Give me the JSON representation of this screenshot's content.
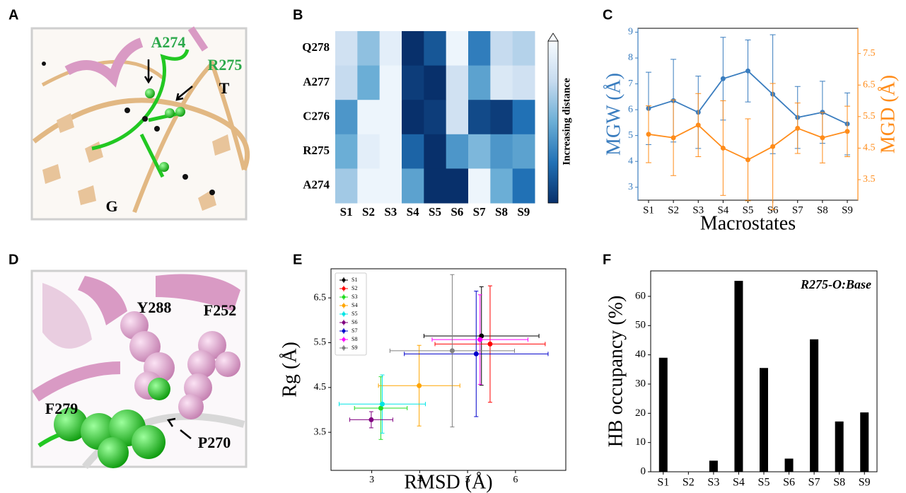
{
  "panel_labels": [
    "A",
    "B",
    "C",
    "D",
    "E",
    "F"
  ],
  "images": [
    {
      "labels": [
        "A274",
        "R275",
        "T",
        "G"
      ]
    },
    {
      "labels": [
        "Y288",
        "F252",
        "F279",
        "P270"
      ]
    }
  ],
  "chart_data": [
    {
      "type": "heatmap",
      "categories": [
        "S1",
        "S2",
        "S3",
        "S4",
        "S5",
        "S6",
        "S7",
        "S8",
        "S9"
      ],
      "rows": [
        "Q278",
        "A277",
        "C276",
        "R275",
        "A274"
      ],
      "values": [
        [
          0.8,
          0.6,
          0.9,
          0.0,
          0.15,
          0.95,
          0.3,
          0.75,
          0.7
        ],
        [
          0.75,
          0.5,
          0.95,
          0.05,
          0.0,
          0.8,
          0.45,
          0.85,
          0.8
        ],
        [
          0.4,
          0.95,
          0.95,
          0.0,
          0.05,
          0.8,
          0.1,
          0.05,
          0.25
        ],
        [
          0.5,
          0.9,
          0.95,
          0.2,
          0.0,
          0.4,
          0.55,
          0.4,
          0.45
        ],
        [
          0.65,
          0.95,
          0.95,
          0.45,
          0.0,
          0.0,
          0.95,
          0.5,
          0.25
        ]
      ],
      "zlim": [
        0,
        1
      ],
      "colormap": [
        "#08306b",
        "#2171b5",
        "#6baed6",
        "#c6dbef",
        "#f7fbff"
      ],
      "colorbar_label": "Increasing distance"
    },
    {
      "type": "line",
      "categories": [
        "S1",
        "S2",
        "S3",
        "S4",
        "S5",
        "S6",
        "S7",
        "S8",
        "S9"
      ],
      "series": [
        {
          "color": "#3a7dbf",
          "values": [
            6.05,
            6.35,
            5.9,
            7.2,
            7.5,
            6.6,
            5.7,
            5.9,
            5.45
          ],
          "errors": [
            1.4,
            1.6,
            1.4,
            1.6,
            1.2,
            2.3,
            1.2,
            1.2,
            1.2
          ]
        },
        {
          "color": "#ff8c1a",
          "axis": "y2",
          "values": [
            4.94,
            4.83,
            5.23,
            4.5,
            4.13,
            4.55,
            5.13,
            4.83,
            5.03
          ],
          "errors": [
            0.9,
            1.2,
            1.0,
            1.5,
            1.3,
            2.0,
            0.8,
            0.8,
            0.8
          ]
        }
      ],
      "ylim": [
        2.5,
        9.15
      ],
      "yticks": [
        3,
        4,
        5,
        6,
        7,
        8,
        9
      ],
      "y2lim": [
        2.85,
        8.3
      ],
      "y2ticks": [
        3.5,
        4.5,
        5.5,
        6.5,
        7.5
      ],
      "xlabel": "Macrostates",
      "ylabel": "MGW (Å)",
      "y2label": "MGD (Å)"
    },
    {
      "type": "scatter",
      "series": [
        {
          "name": "S1",
          "color": "#000000",
          "x": [
            5.29
          ],
          "values": [
            5.65
          ],
          "xerr": [
            1.2
          ],
          "yerr": [
            1.1
          ]
        },
        {
          "name": "S2",
          "color": "#ff0000",
          "x": [
            5.47
          ],
          "values": [
            5.47
          ],
          "xerr": [
            1.15
          ],
          "yerr": [
            1.3
          ]
        },
        {
          "name": "S3",
          "color": "#22dd22",
          "x": [
            3.19
          ],
          "values": [
            4.04
          ],
          "xerr": [
            0.55
          ],
          "yerr": [
            0.7
          ]
        },
        {
          "name": "S4",
          "color": "#ffa500",
          "x": [
            3.99
          ],
          "values": [
            4.54
          ],
          "xerr": [
            0.85
          ],
          "yerr": [
            0.9
          ]
        },
        {
          "name": "S5",
          "color": "#00e5e5",
          "x": [
            3.22
          ],
          "values": [
            4.13
          ],
          "xerr": [
            0.9
          ],
          "yerr": [
            0.65
          ]
        },
        {
          "name": "S6",
          "color": "#800080",
          "x": [
            2.99
          ],
          "values": [
            3.78
          ],
          "xerr": [
            0.45
          ],
          "yerr": [
            0.18
          ]
        },
        {
          "name": "S7",
          "color": "#0000cc",
          "x": [
            5.18
          ],
          "values": [
            5.25
          ],
          "xerr": [
            1.5
          ],
          "yerr": [
            1.4
          ]
        },
        {
          "name": "S8",
          "color": "#ff00ff",
          "x": [
            5.26
          ],
          "values": [
            5.57
          ],
          "xerr": [
            1.0
          ],
          "yerr": [
            1.0
          ]
        },
        {
          "name": "S9",
          "color": "#808080",
          "x": [
            4.68
          ],
          "values": [
            5.32
          ],
          "xerr": [
            1.3
          ],
          "yerr": [
            1.7
          ]
        }
      ],
      "xlim": [
        2.15,
        7.05
      ],
      "xticks": [
        3,
        4,
        5,
        6
      ],
      "ylim": [
        2.65,
        7.15
      ],
      "yticks": [
        3.5,
        4.5,
        5.5,
        6.5
      ],
      "xlabel": "RMSD (Å)",
      "ylabel": "Rg (Å)",
      "legend": "upper left"
    },
    {
      "type": "bar",
      "categories": [
        "S1",
        "S2",
        "S3",
        "S4",
        "S5",
        "S6",
        "S7",
        "S8",
        "S9"
      ],
      "values": [
        39,
        0,
        3.8,
        65.3,
        35.5,
        4.5,
        45.3,
        17.2,
        20.3
      ],
      "color": "#000000",
      "ylim": [
        0,
        68.7
      ],
      "yticks": [
        0,
        10,
        20,
        30,
        40,
        50,
        60
      ],
      "ylabel": "HB occupancy (%)",
      "annotation": "R275-O:Base"
    }
  ]
}
